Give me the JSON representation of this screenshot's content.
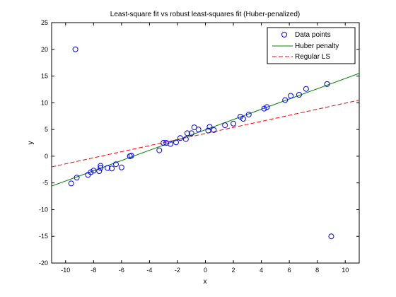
{
  "chart_data": {
    "type": "scatter",
    "title": "Least-square fit vs robust least-squares fit (Huber-penalized)",
    "xlabel": "x",
    "ylabel": "y",
    "xlim": [
      -11,
      11
    ],
    "ylim": [
      -20,
      25
    ],
    "xticks": [
      -10,
      -8,
      -6,
      -4,
      -2,
      0,
      2,
      4,
      6,
      8,
      10
    ],
    "yticks": [
      -20,
      -15,
      -10,
      -5,
      0,
      5,
      10,
      15,
      20,
      25
    ],
    "grid": false,
    "legend_position": "top-right",
    "points": {
      "name": "Data points",
      "color": "#0000ff",
      "x": [
        -9.6,
        -9.3,
        -9.2,
        -8.4,
        -8.2,
        -8.0,
        -7.6,
        -7.5,
        -7.5,
        -7.0,
        -6.7,
        -6.4,
        -6.0,
        -5.4,
        -5.3,
        -3.3,
        -3.0,
        -2.8,
        -2.5,
        -2.1,
        -1.8,
        -1.4,
        -1.3,
        -1.0,
        -0.8,
        -0.5,
        0.2,
        0.3,
        0.6,
        1.4,
        2.0,
        2.5,
        2.7,
        3.1,
        4.2,
        4.4,
        5.7,
        6.1,
        6.7,
        7.2,
        8.7,
        9.0
      ],
      "y": [
        -5.1,
        20.0,
        -4.0,
        -3.5,
        -3.0,
        -2.7,
        -2.8,
        -2.2,
        -1.8,
        -2.2,
        -2.3,
        -1.5,
        -2.1,
        0.0,
        0.1,
        1.1,
        2.5,
        2.5,
        2.3,
        2.6,
        3.4,
        3.2,
        4.3,
        4.3,
        5.4,
        5.0,
        4.8,
        5.5,
        4.9,
        5.8,
        6.1,
        7.4,
        7.0,
        7.8,
        8.9,
        9.2,
        10.5,
        11.3,
        11.5,
        12.6,
        13.5,
        -15.0
      ]
    },
    "series": [
      {
        "name": "Huber penalty",
        "type": "line",
        "style": "solid",
        "color": "#008000",
        "x": [
          -11,
          11
        ],
        "y": [
          -5.6,
          15.5
        ]
      },
      {
        "name": "Regular LS",
        "type": "line",
        "style": "dashed",
        "color": "#ff0000",
        "x": [
          -11,
          11
        ],
        "y": [
          -2.0,
          10.5
        ]
      }
    ]
  }
}
